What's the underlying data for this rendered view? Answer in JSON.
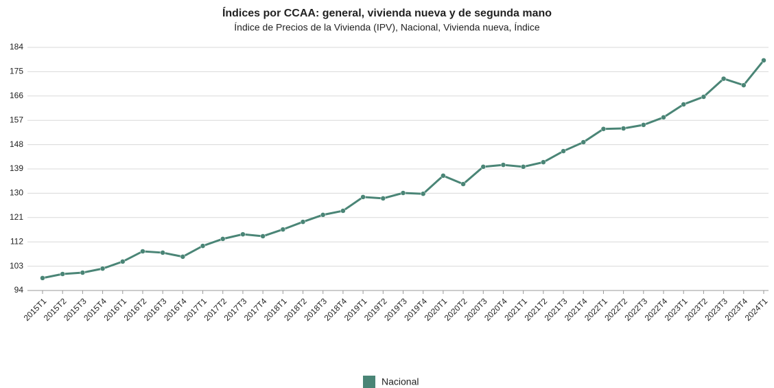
{
  "chart_data": {
    "type": "line",
    "title": "Índices por CCAA: general, vivienda nueva y de segunda mano",
    "subtitle": "Índice de Precios de la Vivienda (IPV), Nacional, Vivienda nueva, Índice",
    "categories": [
      "2015T1",
      "2015T2",
      "2015T3",
      "2015T4",
      "2016T1",
      "2016T2",
      "2016T3",
      "2016T4",
      "2017T1",
      "2017T2",
      "2017T3",
      "2017T4",
      "2018T1",
      "2018T2",
      "2018T3",
      "2018T4",
      "2019T1",
      "2019T2",
      "2019T3",
      "2019T4",
      "2020T1",
      "2020T2",
      "2020T3",
      "2020T4",
      "2021T1",
      "2021T2",
      "2021T3",
      "2021T4",
      "2022T1",
      "2022T2",
      "2022T3",
      "2022T4",
      "2023T1",
      "2023T2",
      "2023T3",
      "2023T4",
      "2024T1"
    ],
    "series": [
      {
        "name": "Nacional",
        "color": "#4a8576",
        "values": [
          98.6,
          100.1,
          100.6,
          102.1,
          104.7,
          108.5,
          108.0,
          106.5,
          110.5,
          113.1,
          114.8,
          114.1,
          116.6,
          119.4,
          122.0,
          123.5,
          128.6,
          128.1,
          130.1,
          129.8,
          136.5,
          133.4,
          139.8,
          140.5,
          139.8,
          141.5,
          145.6,
          148.9,
          153.8,
          154.0,
          155.3,
          158.1,
          162.9,
          165.7,
          172.4,
          170.0,
          179.2
        ]
      }
    ],
    "ylim": [
      94,
      184
    ],
    "yticks": [
      94,
      103,
      112,
      121,
      130,
      139,
      148,
      157,
      166,
      175,
      184
    ],
    "grid": true
  }
}
